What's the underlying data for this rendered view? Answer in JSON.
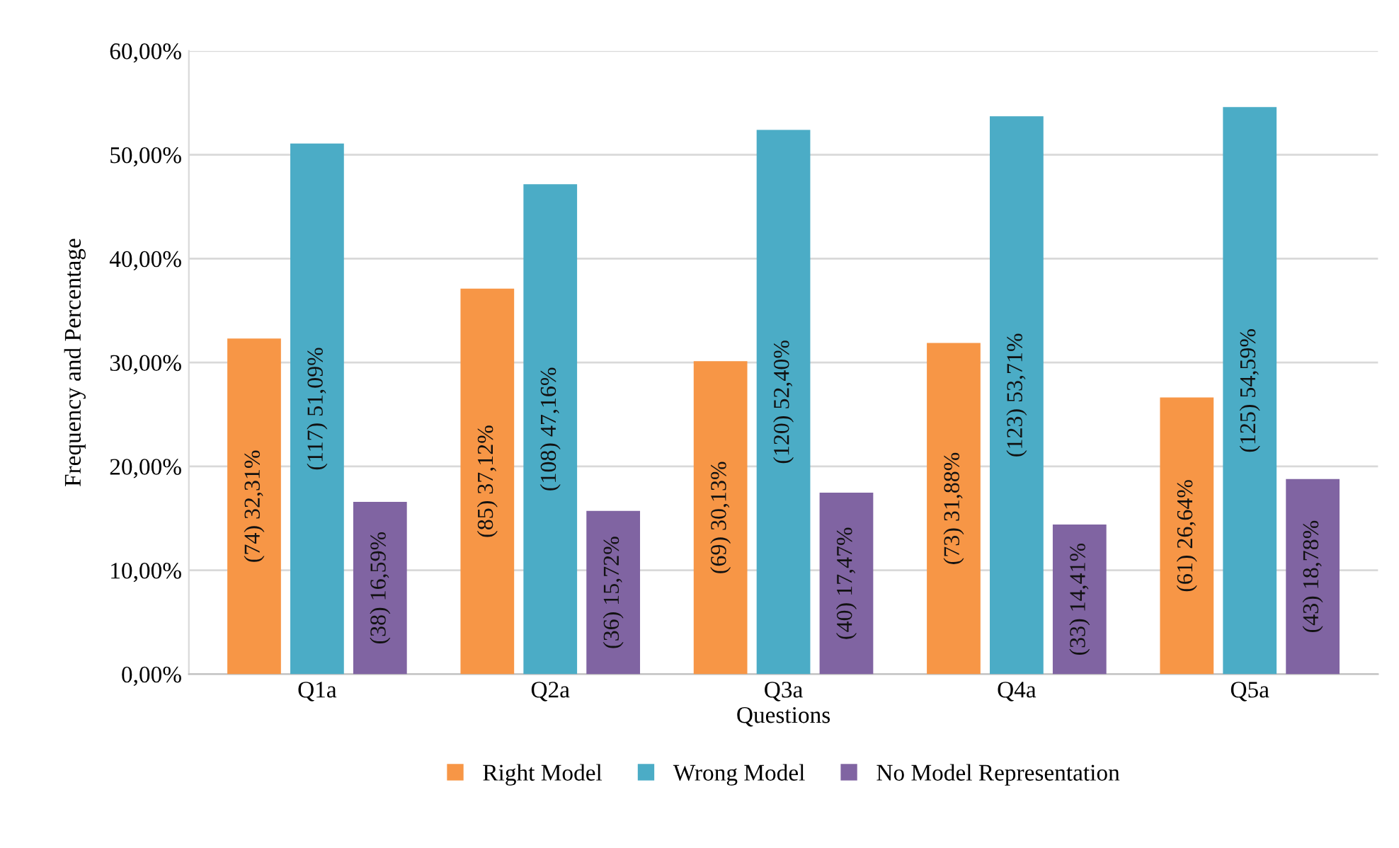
{
  "chart_data": {
    "type": "bar",
    "xlabel": "Questions",
    "ylabel": "Frequency and Percentage",
    "categories": [
      "Q1a",
      "Q2a",
      "Q3a",
      "Q4a",
      "Q5a"
    ],
    "series": [
      {
        "name": "Right Model",
        "color": "#f79646",
        "values": [
          32.31,
          37.12,
          30.13,
          31.88,
          26.64
        ],
        "value_labels": [
          "(74) 32,31%",
          "(85) 37,12%",
          "(69) 30,13%",
          "(73) 31,88%",
          "(61) 26,64%"
        ]
      },
      {
        "name": "Wrong Model",
        "color": "#4bacc6",
        "values": [
          51.09,
          47.16,
          52.4,
          53.71,
          54.59
        ],
        "value_labels": [
          "(117) 51,09%",
          "(108) 47,16%",
          "(120) 52,40%",
          "(123) 53,71%",
          "(125) 54,59%"
        ]
      },
      {
        "name": "No Model Representation",
        "color": "#8064a2",
        "values": [
          16.59,
          15.72,
          17.47,
          14.41,
          18.78
        ],
        "value_labels": [
          "(38) 16,59%",
          "(36) 15,72%",
          "(40) 17,47%",
          "(33) 14,41%",
          "(43) 18,78%"
        ]
      }
    ],
    "ylim": [
      0,
      60
    ],
    "yticks": [
      {
        "value": 0,
        "label": "0,00%"
      },
      {
        "value": 10,
        "label": "10,00%"
      },
      {
        "value": 20,
        "label": "20,00%"
      },
      {
        "value": 30,
        "label": "30,00%"
      },
      {
        "value": 40,
        "label": "40,00%"
      },
      {
        "value": 50,
        "label": "50,00%"
      },
      {
        "value": 60,
        "label": "60,00%"
      }
    ],
    "grid": "y",
    "legend": "bottom"
  }
}
